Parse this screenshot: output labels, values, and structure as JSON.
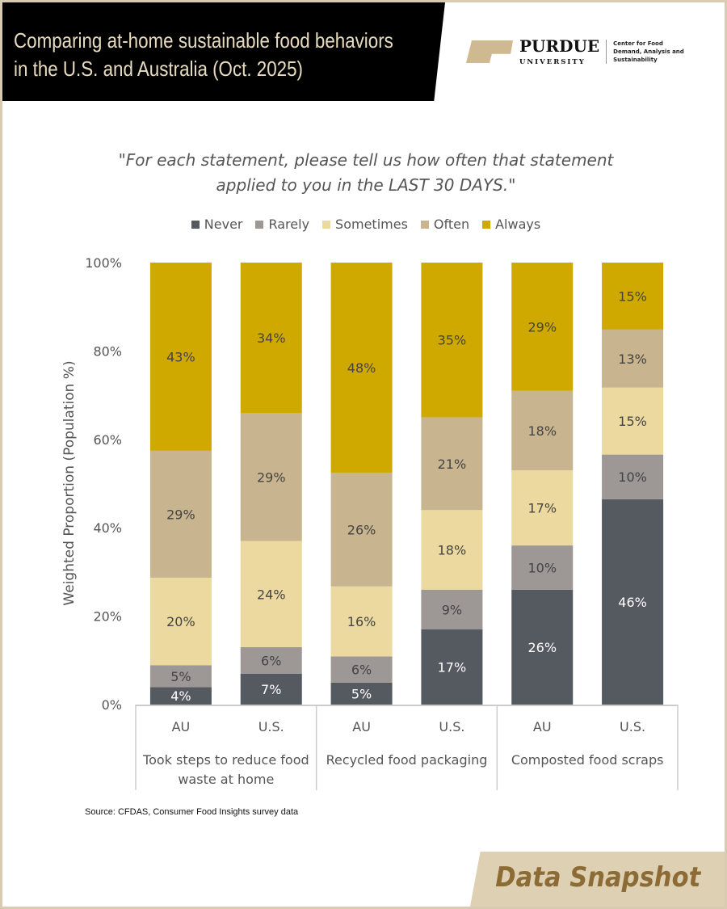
{
  "header": {
    "title_line1": "Comparing at-home sustainable food behaviors",
    "title_line2": "in the U.S. and Australia (Oct. 2025)",
    "logo_text": "PURDUE UNIVERSITY",
    "center_text": "Center for Food Demand, Analysis and Sustainability"
  },
  "quote_line1": "\"For each statement, please tell us how often that statement",
  "quote_line2": "applied to you in the LAST 30 DAYS.\"",
  "source": "Source: CFDAS, Consumer Food Insights survey data",
  "badge": "Data Snapshot",
  "chart_data": {
    "type": "bar",
    "stacked": true,
    "ylabel": "Weighted Proportion (Population %)",
    "ylim": [
      0,
      100
    ],
    "yticks": [
      "0%",
      "20%",
      "40%",
      "60%",
      "80%",
      "100%"
    ],
    "categories": [
      "AU",
      "U.S.",
      "AU",
      "U.S.",
      "AU",
      "U.S."
    ],
    "groups": [
      {
        "label_line1": "Took steps to reduce food",
        "label_line2": "waste at home"
      },
      {
        "label_line1": "Recycled food packaging",
        "label_line2": ""
      },
      {
        "label_line1": "Composted food scraps",
        "label_line2": ""
      }
    ],
    "legend_position": "top",
    "series": [
      {
        "name": "Never",
        "color": "#555960",
        "label_color": "#ffffff",
        "values": [
          4,
          7,
          5,
          17,
          26,
          46
        ]
      },
      {
        "name": "Rarely",
        "color": "#9d9795",
        "label_color": "#444444",
        "values": [
          5,
          6,
          6,
          9,
          10,
          10
        ]
      },
      {
        "name": "Sometimes",
        "color": "#ebd99f",
        "label_color": "#444444",
        "values": [
          20,
          24,
          16,
          18,
          17,
          15
        ]
      },
      {
        "name": "Often",
        "color": "#c8b48e",
        "label_color": "#444444",
        "values": [
          29,
          29,
          26,
          21,
          18,
          13
        ]
      },
      {
        "name": "Always",
        "color": "#cfa800",
        "label_color": "#444444",
        "values": [
          43,
          34,
          48,
          35,
          29,
          15
        ]
      }
    ]
  }
}
